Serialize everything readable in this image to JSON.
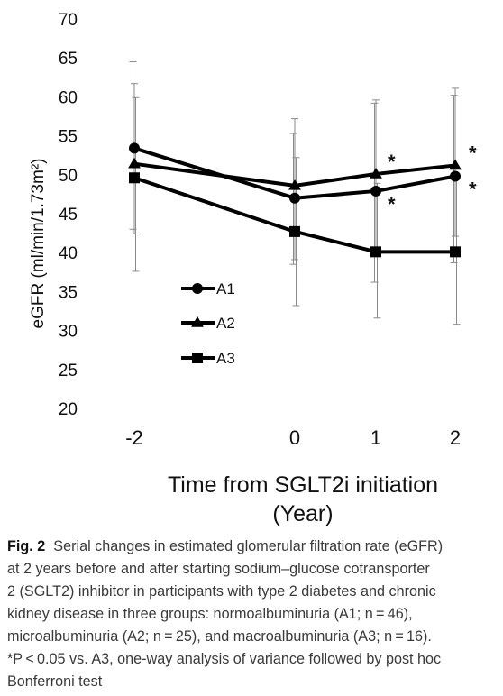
{
  "chart_data": {
    "type": "line",
    "ylabel": "eGFR (ml/min/1.73m²)",
    "xlabel_line1": "Time from SGLT2i initiation",
    "xlabel_line2": "(Year)",
    "ylim": [
      20,
      70
    ],
    "yticks": [
      20,
      25,
      30,
      35,
      40,
      45,
      50,
      55,
      60,
      65,
      70
    ],
    "x": [
      -2,
      0,
      1,
      2
    ],
    "xtick_labels": [
      "-2",
      "0",
      "1",
      "2"
    ],
    "grid": false,
    "legend_position": "left-center",
    "series": [
      {
        "name": "A1",
        "marker": "circle",
        "values": [
          53.4,
          47.0,
          47.9,
          49.8
        ],
        "error_low": [
          43.0,
          38.5,
          36.2,
          38.7
        ],
        "error_high": [
          64.5,
          55.3,
          59.2,
          60.2
        ]
      },
      {
        "name": "A2",
        "marker": "triangle",
        "values": [
          51.4,
          48.6,
          50.1,
          51.2
        ],
        "error_low": [
          42.4,
          39.1,
          40.4,
          42.1
        ],
        "error_high": [
          61.7,
          57.2,
          59.6,
          61.1
        ]
      },
      {
        "name": "A3",
        "marker": "square",
        "values": [
          49.6,
          42.7,
          40.1,
          40.1
        ],
        "error_low": [
          37.6,
          33.2,
          31.6,
          30.8
        ],
        "error_high": [
          59.9,
          52.2,
          48.9,
          49.5
        ]
      }
    ],
    "annotations": [
      {
        "text": "*",
        "x": 1,
        "series": "A2"
      },
      {
        "text": "*",
        "x": 1,
        "series": "A1"
      },
      {
        "text": "*",
        "x": 2,
        "series": "A2"
      },
      {
        "text": "*",
        "x": 2,
        "series": "A1"
      }
    ]
  },
  "caption": {
    "label": "Fig. 2",
    "line1": "Serial changes in estimated glomerular filtration rate (eGFR)",
    "line2": "at 2 years before and after starting sodium–glucose cotransporter",
    "line3": "2 (SGLT2) inhibitor in participants with type 2 diabetes and chronic",
    "line4": "kidney disease in three groups: normoalbuminuria (A1; n = 46),",
    "line5": "microalbuminuria (A2; n = 25), and macroalbuminuria (A3; n = 16).",
    "line6": "*P < 0.05 vs. A3, one-way analysis of variance followed by post hoc",
    "line7": "Bonferroni test"
  }
}
